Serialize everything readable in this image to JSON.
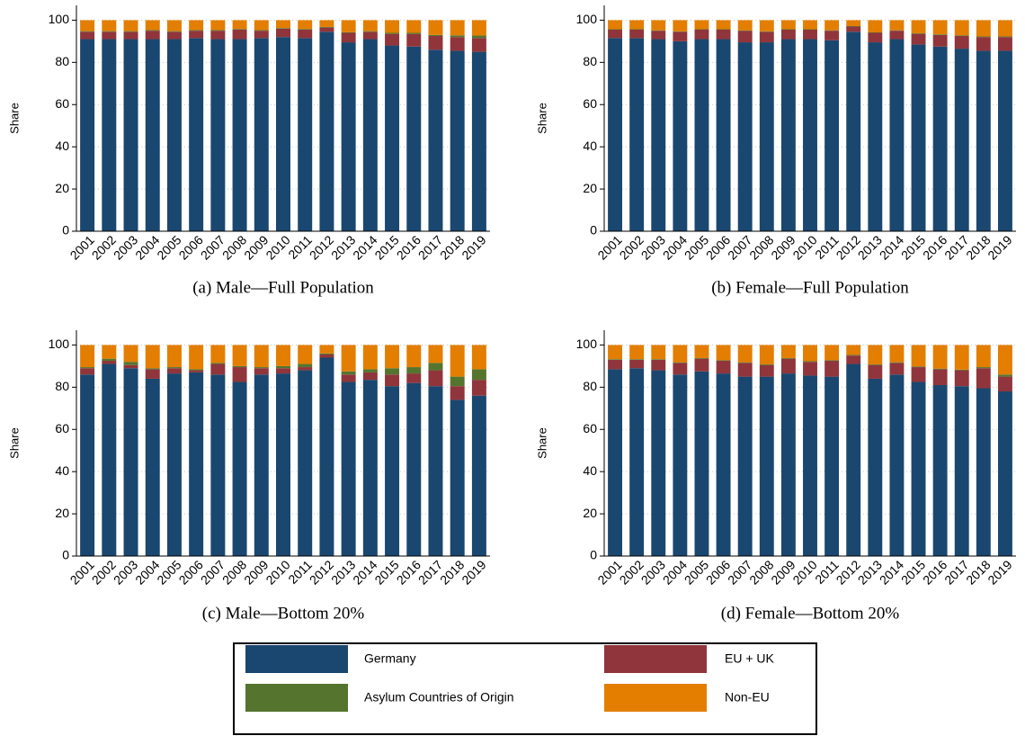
{
  "chart_data": [
    {
      "type": "bar",
      "stacked": true,
      "title": "(a) Male—Full Population",
      "y_label": "Share",
      "categories": [
        "2001",
        "2002",
        "2003",
        "2004",
        "2005",
        "2006",
        "2007",
        "2008",
        "2009",
        "2010",
        "2011",
        "2012",
        "2013",
        "2014",
        "2015",
        "2016",
        "2017",
        "2018",
        "2019"
      ],
      "series": [
        {
          "name": "Germany",
          "color": "#1a476f",
          "values": [
            91,
            91,
            91,
            91,
            91,
            91.5,
            91,
            91,
            91.5,
            92,
            91.5,
            94.5,
            89.5,
            91,
            88,
            87.5,
            86,
            85.5,
            85
          ]
        },
        {
          "name": "EU + UK",
          "color": "#90353b",
          "values": [
            3.5,
            3.5,
            3.5,
            4,
            3.5,
            3.5,
            4,
            4.5,
            3.5,
            4,
            4,
            2,
            4.5,
            3.5,
            5.5,
            6,
            6.5,
            6.5,
            6.5
          ]
        },
        {
          "name": "Asylum Countries of Origin",
          "color": "#55752f",
          "values": [
            0.3,
            0.3,
            0.3,
            0.3,
            0.3,
            0.3,
            0.3,
            0.3,
            0.3,
            0.3,
            0.3,
            0.3,
            0.3,
            0.3,
            0.5,
            0.5,
            0.5,
            0.8,
            1.2
          ]
        },
        {
          "name": "Non-EU",
          "color": "#e37e00",
          "values": [
            5.2,
            5.2,
            5.2,
            4.7,
            5.2,
            4.7,
            4.7,
            4.2,
            4.7,
            3.7,
            4.2,
            3.2,
            5.7,
            5.2,
            6,
            6,
            7,
            7.2,
            7.3
          ]
        }
      ],
      "ylim": [
        0,
        107
      ],
      "yticks": [
        0,
        20,
        40,
        60,
        80,
        100
      ],
      "grid": true
    },
    {
      "type": "bar",
      "stacked": true,
      "title": "(b) Female—Full Population",
      "y_label": "Share",
      "categories": [
        "2001",
        "2002",
        "2003",
        "2004",
        "2005",
        "2006",
        "2007",
        "2008",
        "2009",
        "2010",
        "2011",
        "2012",
        "2013",
        "2014",
        "2015",
        "2016",
        "2017",
        "2018",
        "2019"
      ],
      "series": [
        {
          "name": "Germany",
          "color": "#1a476f",
          "values": [
            91.5,
            91.5,
            91,
            90,
            91,
            91,
            89.5,
            89.5,
            91,
            91,
            90.5,
            94.5,
            89.5,
            91,
            88.5,
            87.5,
            86.5,
            85.5,
            85.5
          ]
        },
        {
          "name": "EU + UK",
          "color": "#90353b",
          "values": [
            4,
            4,
            4,
            4.5,
            4.5,
            4.5,
            5.5,
            5,
            4.5,
            4.5,
            4.5,
            2.5,
            4.5,
            4,
            5,
            5.5,
            6,
            6.5,
            6.5
          ]
        },
        {
          "name": "Asylum Countries of Origin",
          "color": "#55752f",
          "values": [
            0.2,
            0.2,
            0.2,
            0.2,
            0.2,
            0.2,
            0.2,
            0.2,
            0.2,
            0.2,
            0.2,
            0.2,
            0.2,
            0.2,
            0.3,
            0.3,
            0.3,
            0.3,
            0.3
          ]
        },
        {
          "name": "Non-EU",
          "color": "#e37e00",
          "values": [
            4.3,
            4.3,
            4.8,
            5.3,
            4.3,
            4.3,
            4.8,
            5.3,
            4.3,
            4.3,
            4.8,
            2.8,
            5.8,
            4.8,
            6.2,
            6.7,
            7.2,
            7.7,
            7.7
          ]
        }
      ],
      "ylim": [
        0,
        107
      ],
      "yticks": [
        0,
        20,
        40,
        60,
        80,
        100
      ],
      "grid": true
    },
    {
      "type": "bar",
      "stacked": true,
      "title": "(c) Male—Bottom 20%",
      "y_label": "Share",
      "categories": [
        "2001",
        "2002",
        "2003",
        "2004",
        "2005",
        "2006",
        "2007",
        "2008",
        "2009",
        "2010",
        "2011",
        "2012",
        "2013",
        "2014",
        "2015",
        "2016",
        "2017",
        "2018",
        "2019"
      ],
      "series": [
        {
          "name": "Germany",
          "color": "#1a476f",
          "values": [
            86,
            91,
            89,
            84,
            86.5,
            87,
            86,
            82.5,
            86,
            86.5,
            88,
            94,
            82.5,
            83.5,
            80.5,
            82,
            80.5,
            74,
            76
          ]
        },
        {
          "name": "EU + UK",
          "color": "#90353b",
          "values": [
            3,
            1.5,
            1.5,
            4.5,
            2.5,
            1,
            5,
            7,
            3,
            2.5,
            1.5,
            1.5,
            3.5,
            3.5,
            5.5,
            4.5,
            7.5,
            6.5,
            7.5
          ]
        },
        {
          "name": "Asylum Countries of Origin",
          "color": "#55752f",
          "values": [
            0.5,
            1,
            1.5,
            0.5,
            0.5,
            0.5,
            0.5,
            0.5,
            0.5,
            1,
            1.5,
            0.5,
            1.5,
            1.5,
            3,
            3,
            3.5,
            4.5,
            5
          ]
        },
        {
          "name": "Non-EU",
          "color": "#e37e00",
          "values": [
            10.5,
            6.5,
            8,
            11,
            10.5,
            11.5,
            8.5,
            10,
            10.5,
            10,
            9,
            4,
            12.5,
            11.5,
            11,
            10.5,
            8.5,
            15,
            11.5
          ]
        }
      ],
      "ylim": [
        0,
        107
      ],
      "yticks": [
        0,
        20,
        40,
        60,
        80,
        100
      ],
      "grid": true
    },
    {
      "type": "bar",
      "stacked": true,
      "title": "(d) Female—Bottom 20%",
      "y_label": "Share",
      "categories": [
        "2001",
        "2002",
        "2003",
        "2004",
        "2005",
        "2006",
        "2007",
        "2008",
        "2009",
        "2010",
        "2011",
        "2012",
        "2013",
        "2014",
        "2015",
        "2016",
        "2017",
        "2018",
        "2019"
      ],
      "series": [
        {
          "name": "Germany",
          "color": "#1a476f",
          "values": [
            88.5,
            89,
            88,
            86,
            87.5,
            86.5,
            85,
            85,
            86.5,
            85.5,
            85,
            91,
            84,
            86,
            82.5,
            81,
            80.5,
            79.5,
            78
          ]
        },
        {
          "name": "EU + UK",
          "color": "#90353b",
          "values": [
            4.5,
            4,
            5,
            5.5,
            6,
            6,
            6.5,
            5.5,
            7,
            6.5,
            7.5,
            4,
            6.5,
            5.5,
            7,
            7.5,
            7.5,
            9.5,
            7
          ]
        },
        {
          "name": "Asylum Countries of Origin",
          "color": "#55752f",
          "values": [
            0.3,
            0.3,
            0.3,
            0.3,
            0.3,
            0.3,
            0.3,
            0.3,
            0.3,
            0.3,
            0.3,
            0.3,
            0.3,
            0.3,
            0.3,
            0.3,
            0.3,
            0.5,
            1
          ]
        },
        {
          "name": "Non-EU",
          "color": "#e37e00",
          "values": [
            6.7,
            6.7,
            6.7,
            8.2,
            6.2,
            7.2,
            8.2,
            9.2,
            6.2,
            7.7,
            7.2,
            4.7,
            9.2,
            8.2,
            10.2,
            11.2,
            11.7,
            10.5,
            14
          ]
        }
      ],
      "ylim": [
        0,
        107
      ],
      "yticks": [
        0,
        20,
        40,
        60,
        80,
        100
      ],
      "grid": true
    }
  ]
}
